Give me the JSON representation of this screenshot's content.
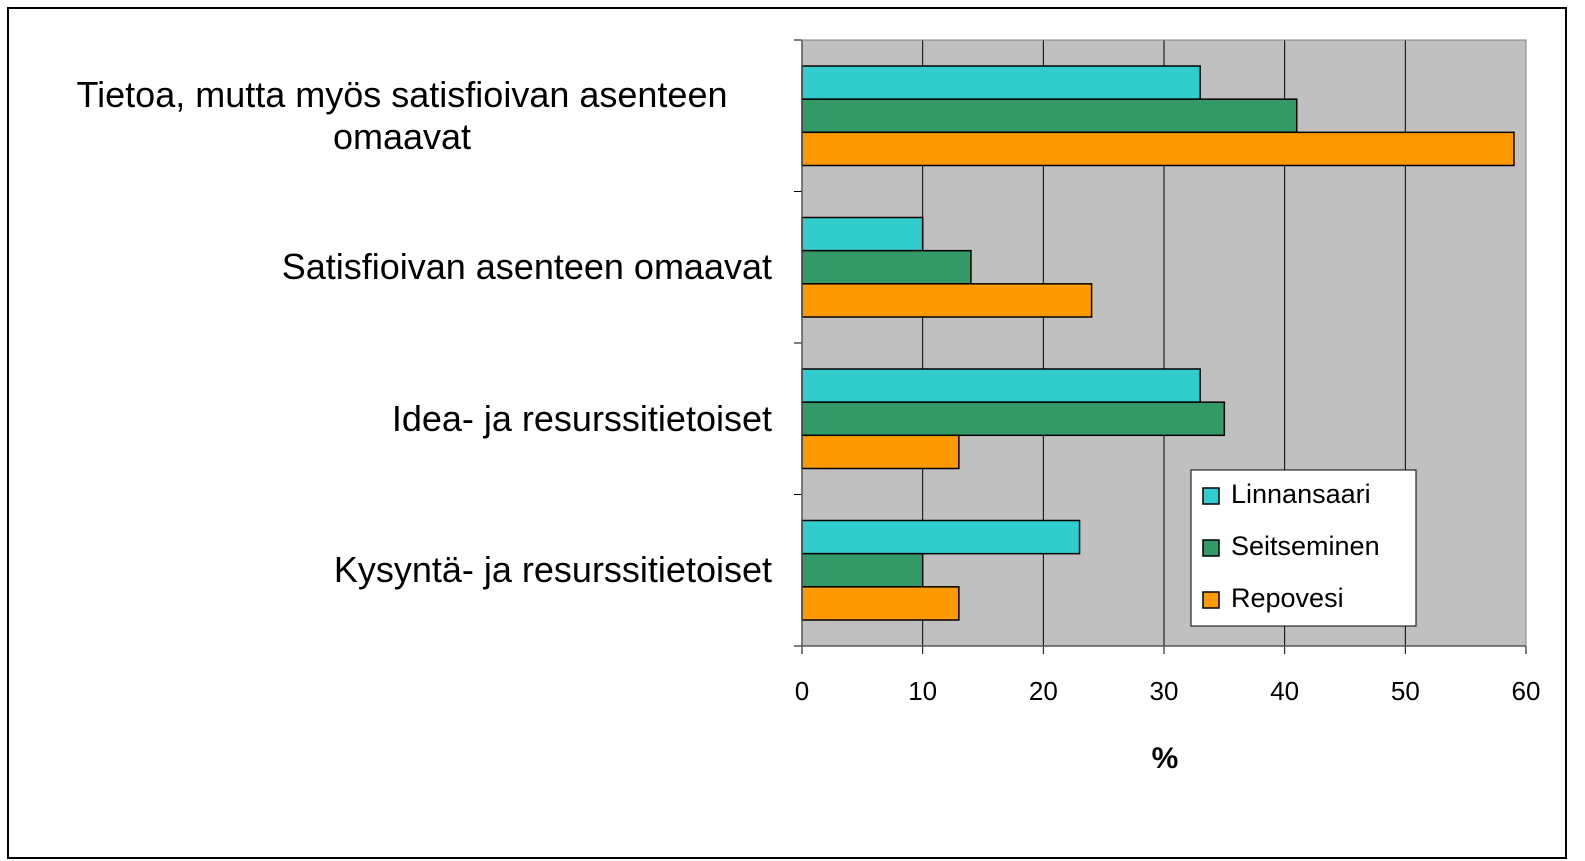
{
  "chart_data": {
    "type": "barh",
    "categories": [
      "Tietoa, mutta myös satisfioivan asenteen omaavat",
      "Satisfioivan asenteen omaavat",
      "Idea- ja resurssitietoiset",
      "Kysyntä- ja resurssitietoiset"
    ],
    "series": [
      {
        "name": "Linnansaari",
        "color": "#33cccc",
        "values": [
          33,
          10,
          33,
          23
        ]
      },
      {
        "name": "Seitseminen",
        "color": "#339966",
        "values": [
          41,
          14,
          35,
          10
        ]
      },
      {
        "name": "Repovesi",
        "color": "#ff9900",
        "values": [
          59,
          24,
          13,
          13
        ]
      }
    ],
    "xlabel": "%",
    "xlim": [
      0,
      60
    ],
    "xticks": [
      0,
      10,
      20,
      30,
      40,
      50,
      60
    ],
    "grid": true,
    "legend": "lower right"
  }
}
